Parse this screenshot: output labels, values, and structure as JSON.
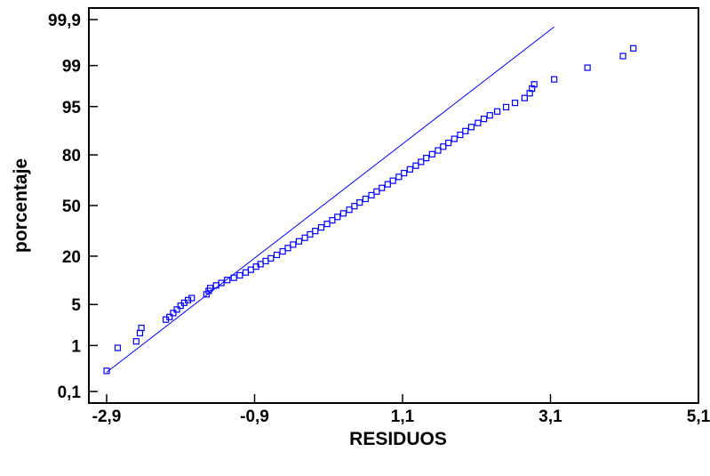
{
  "chart_data": {
    "type": "scatter",
    "title": "",
    "xlabel": "RESIDUOS",
    "ylabel": "porcentaje",
    "xlim": [
      -2.9,
      5.1
    ],
    "ylim_percent": [
      0.1,
      99.9
    ],
    "y_scale": "normal-probability",
    "grid": false,
    "legend": "none",
    "x_ticks": [
      {
        "value": -2.9,
        "label": "-2,9"
      },
      {
        "value": -0.9,
        "label": "-0,9"
      },
      {
        "value": 1.1,
        "label": "1,1"
      },
      {
        "value": 3.1,
        "label": "3,1"
      },
      {
        "value": 5.1,
        "label": "5,1"
      }
    ],
    "y_ticks": [
      {
        "value": 0.1,
        "label": "0,1"
      },
      {
        "value": 1,
        "label": "1"
      },
      {
        "value": 5,
        "label": "5"
      },
      {
        "value": 20,
        "label": "20"
      },
      {
        "value": 50,
        "label": "50"
      },
      {
        "value": 80,
        "label": "80"
      },
      {
        "value": 95,
        "label": "95"
      },
      {
        "value": 99,
        "label": "99"
      },
      {
        "value": 99.9,
        "label": "99,9"
      }
    ],
    "reference_line": {
      "points": [
        [
          -2.9,
          0.28
        ],
        [
          3.15,
          99.85
        ]
      ]
    },
    "series": [
      {
        "marker": "open-square",
        "color": "#0000ff",
        "points": [
          [
            -2.9,
            0.3
          ],
          [
            -2.75,
            0.9
          ],
          [
            -2.5,
            1.2
          ],
          [
            -2.45,
            1.7
          ],
          [
            -2.43,
            2.1
          ],
          [
            -2.1,
            2.9
          ],
          [
            -2.05,
            3.2
          ],
          [
            -2.0,
            3.7
          ],
          [
            -1.95,
            4.2
          ],
          [
            -1.9,
            4.8
          ],
          [
            -1.85,
            5.3
          ],
          [
            -1.8,
            5.8
          ],
          [
            -1.75,
            6.2
          ],
          [
            -1.55,
            7.0
          ],
          [
            -1.52,
            7.8
          ],
          [
            -1.5,
            8.5
          ],
          [
            -1.42,
            9.2
          ],
          [
            -1.35,
            9.9
          ],
          [
            -1.27,
            10.8
          ],
          [
            -1.18,
            11.5
          ],
          [
            -1.1,
            12.3
          ],
          [
            -1.02,
            13.3
          ],
          [
            -0.95,
            14.3
          ],
          [
            -0.88,
            15.5
          ],
          [
            -0.82,
            16.5
          ],
          [
            -0.75,
            17.8
          ],
          [
            -0.68,
            19.0
          ],
          [
            -0.6,
            20.6
          ],
          [
            -0.52,
            22.3
          ],
          [
            -0.45,
            24.0
          ],
          [
            -0.38,
            25.8
          ],
          [
            -0.3,
            27.6
          ],
          [
            -0.22,
            29.6
          ],
          [
            -0.15,
            31.6
          ],
          [
            -0.08,
            33.6
          ],
          [
            0.0,
            35.8
          ],
          [
            0.08,
            38.0
          ],
          [
            0.15,
            40.3
          ],
          [
            0.22,
            42.5
          ],
          [
            0.3,
            44.8
          ],
          [
            0.38,
            47.2
          ],
          [
            0.45,
            49.6
          ],
          [
            0.52,
            52.0
          ],
          [
            0.6,
            54.4
          ],
          [
            0.68,
            56.8
          ],
          [
            0.75,
            59.2
          ],
          [
            0.82,
            61.5
          ],
          [
            0.9,
            63.8
          ],
          [
            0.97,
            66.0
          ],
          [
            1.05,
            68.3
          ],
          [
            1.12,
            70.5
          ],
          [
            1.2,
            72.6
          ],
          [
            1.28,
            74.6
          ],
          [
            1.35,
            76.6
          ],
          [
            1.42,
            78.5
          ],
          [
            1.5,
            80.3
          ],
          [
            1.58,
            82.0
          ],
          [
            1.65,
            83.6
          ],
          [
            1.72,
            85.1
          ],
          [
            1.8,
            86.6
          ],
          [
            1.88,
            88.0
          ],
          [
            1.95,
            89.2
          ],
          [
            2.03,
            90.4
          ],
          [
            2.12,
            91.5
          ],
          [
            2.2,
            92.5
          ],
          [
            2.28,
            93.3
          ],
          [
            2.38,
            94.1
          ],
          [
            2.5,
            94.9
          ],
          [
            2.62,
            95.6
          ],
          [
            2.75,
            96.3
          ],
          [
            2.82,
            96.9
          ],
          [
            2.85,
            97.4
          ],
          [
            2.88,
            97.8
          ],
          [
            3.15,
            98.2
          ],
          [
            3.6,
            98.9
          ],
          [
            4.08,
            99.35
          ],
          [
            4.22,
            99.55
          ]
        ]
      }
    ]
  }
}
